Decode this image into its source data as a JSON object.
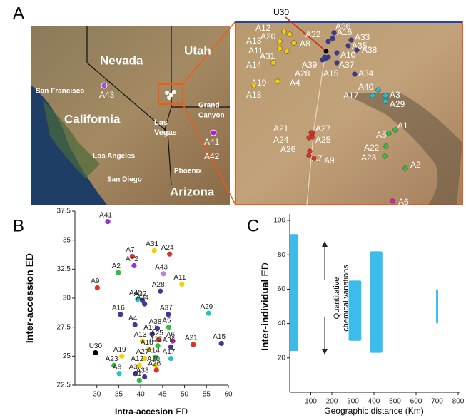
{
  "panel_labels": [
    "A",
    "B",
    "C"
  ],
  "map": {
    "labels": [
      "Nevada",
      "Utah",
      "San Francisco",
      "California",
      [
        "Las",
        "Vegas"
      ],
      [
        "Grand",
        "Canyon"
      ],
      "Los Angeles",
      "San Diego",
      "Phoenix",
      "Arizona"
    ],
    "points": [
      {
        "label": "A43",
        "color": "#a050e0"
      },
      {
        "label": "A41",
        "color": "#b020d0"
      },
      {
        "label": "A42",
        "color": "#b020d0"
      }
    ]
  },
  "zoom_points": [
    {
      "label": "U30",
      "color": "#000000"
    },
    {
      "label": "A12",
      "color": "#f5d000"
    },
    {
      "label": "A20",
      "color": "#f5d000"
    },
    {
      "label": "A32",
      "color": "#3a3a9a"
    },
    {
      "label": "A36",
      "color": "#3a3a9a"
    },
    {
      "label": "A16",
      "color": "#3a3a9a"
    },
    {
      "label": "A33",
      "color": "#3a3a9a"
    },
    {
      "label": "A35",
      "color": "#3a3a9a"
    },
    {
      "label": "A38",
      "color": "#3a3a9a"
    },
    {
      "label": "A13",
      "color": "#f5d000"
    },
    {
      "label": "A8",
      "color": "#f5d000"
    },
    {
      "label": "A10",
      "color": "#3a3a9a"
    },
    {
      "label": "A11",
      "color": "#f5d000"
    },
    {
      "label": "A31",
      "color": "#f5d000"
    },
    {
      "label": "A39",
      "color": "#3a3a9a"
    },
    {
      "label": "A37",
      "color": "#3a3a9a"
    },
    {
      "label": "A14",
      "color": "#f5d000"
    },
    {
      "label": "A28",
      "color": "#3a3a9a"
    },
    {
      "label": "A15",
      "color": "#3a3a9a"
    },
    {
      "label": "A34",
      "color": "#3a3a9a"
    },
    {
      "label": "A4",
      "color": "#3a3a9a"
    },
    {
      "label": "A19",
      "color": "#f5d000"
    },
    {
      "label": "A18",
      "color": "#f5d000"
    },
    {
      "label": "A40",
      "color": "#20c0d0"
    },
    {
      "label": "A17",
      "color": "#20c0d0"
    },
    {
      "label": "A3",
      "color": "#20c0d0"
    },
    {
      "label": "A29",
      "color": "#20c0d0"
    },
    {
      "label": "A1",
      "color": "#30c040"
    },
    {
      "label": "A5",
      "color": "#30c040"
    },
    {
      "label": "A22",
      "color": "#30c040"
    },
    {
      "label": "A23",
      "color": "#30c040"
    },
    {
      "label": "A2",
      "color": "#30c040"
    },
    {
      "label": "A6",
      "color": "#d020c0"
    },
    {
      "label": "A21",
      "color": "#e03020"
    },
    {
      "label": "A27",
      "color": "#e03020"
    },
    {
      "label": "A24",
      "color": "#e03020"
    },
    {
      "label": "A25",
      "color": "#e03020"
    },
    {
      "label": "A26",
      "color": "#e03020"
    },
    {
      "label": "A7",
      "color": "#e03020"
    },
    {
      "label": "A9",
      "color": "#e03020"
    }
  ],
  "chart_data": [
    {
      "type": "scatter",
      "ylabel": [
        "Inter-accession",
        "ED"
      ],
      "xlabel": [
        "Intra-accesion",
        "ED"
      ],
      "xlim": [
        25,
        60
      ],
      "xticks": [
        30,
        35,
        40,
        45,
        50,
        55,
        60
      ],
      "ylim": [
        22.5,
        37.5
      ],
      "yticks": [
        22.5,
        25,
        27.5,
        30,
        32.5,
        35,
        37.5
      ],
      "labels": [
        "A41",
        "A31",
        "A24",
        "A7",
        "A2",
        "A42",
        "A43",
        "A9",
        "A11",
        "A28",
        "A40",
        "A32",
        "A34",
        "A16",
        "A29",
        "A4",
        "A37",
        "A38",
        "A10",
        "A5",
        "A25",
        "A6",
        "A36",
        "A15",
        "A21",
        "U30",
        "A13",
        "A18",
        "A22",
        "A19",
        "A27",
        "A14",
        "A17",
        "A23",
        "A12",
        "A20",
        "A8",
        "A26",
        "A3",
        "A1",
        "A33"
      ],
      "x": [
        32.5,
        43.1,
        46.6,
        38.1,
        34.9,
        38.5,
        45.2,
        30.1,
        49.4,
        44.5,
        39.3,
        40.4,
        40.9,
        35.4,
        55.5,
        38.7,
        46.3,
        43.8,
        42.6,
        46.4,
        44.2,
        47.3,
        46.9,
        58.4,
        52.0,
        29.7,
        40.4,
        41.9,
        43.9,
        35.7,
        40.9,
        43.4,
        46.9,
        33.9,
        39.7,
        43.4,
        35.1,
        43.6,
        38.8,
        39.7,
        40.9
      ],
      "y": [
        36.6,
        34.1,
        33.8,
        33.6,
        32.2,
        32.8,
        32.1,
        30.9,
        31.2,
        30.6,
        29.9,
        29.8,
        29.5,
        28.6,
        28.7,
        27.7,
        28.6,
        27.4,
        26.9,
        27.5,
        26.4,
        26.3,
        25.8,
        26.1,
        26.0,
        25.3,
        26.3,
        25.6,
        25.9,
        25.0,
        24.8,
        24.9,
        24.8,
        24.2,
        24.2,
        24.2,
        23.5,
        23.8,
        23.5,
        22.9,
        23.2
      ],
      "colors": [
        "#9b30d0",
        "#f5d000",
        "#e03020",
        "#e03020",
        "#30c040",
        "#9b30d0",
        "#c080e0",
        "#e03020",
        "#f5d000",
        "#3a3a9a",
        "#20c0d0",
        "#3a3a9a",
        "#3a3a9a",
        "#3a3a9a",
        "#20c0d0",
        "#3a3a9a",
        "#3a3a9a",
        "#3a3a9a",
        "#3a3a9a",
        "#30c040",
        "#e03020",
        "#d020c0",
        "#3a3a9a",
        "#3a3a9a",
        "#e03020",
        "#000000",
        "#f5d000",
        "#f5d000",
        "#30c040",
        "#f5d000",
        "#f5d000",
        "#30c040",
        "#20c0d0",
        "#30c040",
        "#f5d000",
        "#f5d000",
        "#20c0d0",
        "#e03020",
        "#3a3a9a",
        "#30c040",
        "#3a3a9a"
      ]
    },
    {
      "type": "range",
      "ylabel": [
        "Inter-individual",
        "ED"
      ],
      "xlabel": "Geographic distance (Km)",
      "annotation": [
        "Quantitative",
        "chemical variations"
      ],
      "color": "#1ab0e8",
      "xlim": [
        0,
        800
      ],
      "xticks": [
        100,
        200,
        300,
        400,
        500,
        600,
        700,
        800
      ],
      "ylim": [
        0,
        100
      ],
      "yticks": [
        20,
        40,
        60,
        80,
        100
      ],
      "clusters": [
        {
          "x": [
            0,
            40
          ],
          "y": [
            24,
            92
          ]
        },
        {
          "x": [
            280,
            340
          ],
          "y": [
            30,
            65
          ]
        },
        {
          "x": [
            380,
            440
          ],
          "y": [
            23,
            82
          ]
        },
        {
          "x": [
            695,
            705
          ],
          "y": [
            40,
            60
          ]
        }
      ]
    }
  ]
}
